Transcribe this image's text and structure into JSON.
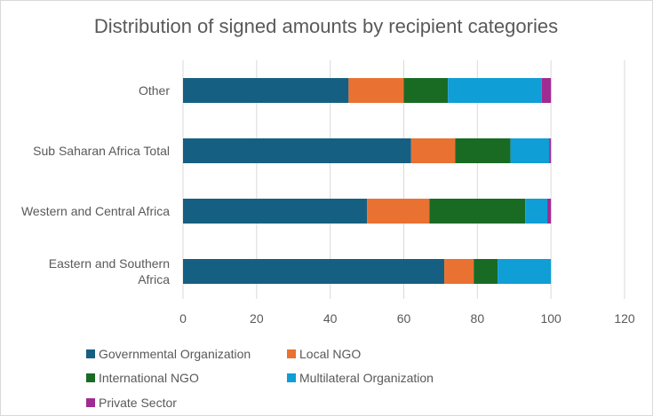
{
  "chart_data": {
    "type": "bar",
    "orientation": "horizontal",
    "stacked": true,
    "title": "Distribution of signed amounts by recipient categories",
    "xlabel": "",
    "ylabel": "",
    "xlim": [
      0,
      120
    ],
    "xticks": [
      0,
      20,
      40,
      60,
      80,
      100,
      120
    ],
    "grid": true,
    "legend_position": "bottom",
    "categories": [
      [
        "Other"
      ],
      [
        "Sub Saharan Africa Total"
      ],
      [
        "Western and Central Africa"
      ],
      [
        "Eastern and Southern",
        "Africa"
      ]
    ],
    "series": [
      {
        "name": "Governmental Organization",
        "color": "#156082",
        "values": [
          45,
          62,
          50,
          71
        ]
      },
      {
        "name": "Local NGO",
        "color": "#E97132",
        "values": [
          15,
          12,
          17,
          8
        ]
      },
      {
        "name": "International NGO",
        "color": "#196B24",
        "values": [
          12,
          15,
          26,
          6.5
        ]
      },
      {
        "name": "Multilateral Organization",
        "color": "#0F9ED5",
        "values": [
          25.5,
          10.5,
          6,
          14.5
        ]
      },
      {
        "name": "Private Sector",
        "color": "#A02B93",
        "values": [
          2.5,
          0.5,
          1,
          0
        ]
      }
    ]
  }
}
